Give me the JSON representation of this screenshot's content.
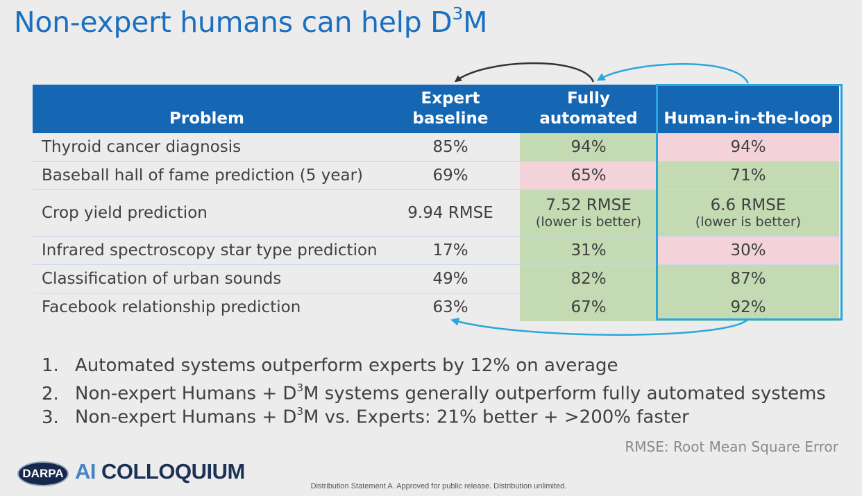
{
  "title": {
    "prefix": "Non-expert humans can help D",
    "sup": "3",
    "suffix": "M"
  },
  "table": {
    "columns": [
      "Problem",
      "Expert baseline",
      "Fully automated",
      "Human-in-the-loop"
    ],
    "rows": [
      {
        "problem": "Thyroid cancer diagnosis",
        "expert": "85%",
        "auto": "94%",
        "hitl": "94%",
        "auto_color": "green",
        "hitl_color": "pink"
      },
      {
        "problem": "Baseball hall of fame prediction (5 year)",
        "expert": "69%",
        "auto": "65%",
        "hitl": "71%",
        "auto_color": "pink",
        "hitl_color": "green"
      },
      {
        "problem": "Crop yield prediction",
        "expert": "9.94 RMSE",
        "auto": "7.52 RMSE",
        "auto_note": "(lower is better)",
        "hitl": "6.6 RMSE",
        "hitl_note": "(lower is better)",
        "auto_color": "green",
        "hitl_color": "green"
      },
      {
        "problem": "Infrared spectroscopy star type prediction",
        "expert": "17%",
        "auto": "31%",
        "hitl": "30%",
        "auto_color": "green",
        "hitl_color": "pink"
      },
      {
        "problem": "Classification of urban sounds",
        "expert": "49%",
        "auto": "82%",
        "hitl": "87%",
        "auto_color": "green",
        "hitl_color": "green"
      },
      {
        "problem": "Facebook relationship prediction",
        "expert": "63%",
        "auto": "67%",
        "hitl": "92%",
        "auto_color": "green",
        "hitl_color": "green"
      }
    ]
  },
  "notes": [
    {
      "num": "1.",
      "a": "Automated systems outperform experts by 12% on average",
      "sup": "",
      "b": ""
    },
    {
      "num": "2.",
      "a": "Non-expert Humans + D",
      "sup": "3",
      "b": "M systems generally outperform fully automated systems"
    },
    {
      "num": "3.",
      "a": "Non-expert Humans + D",
      "sup": "3",
      "b": "M vs. Experts:  21% better + >200% faster"
    }
  ],
  "footnote": "RMSE: Root Mean Square Error",
  "distribution": "Distribution Statement A. Approved for public release. Distribution unlimited.",
  "logo": {
    "darpa": "DARPA",
    "ai": "AI",
    "colloquium": "COLLOQUIUM"
  },
  "colors": {
    "title": "#1a6fc0",
    "header_bg": "#1667b3",
    "green": "#c3dab3",
    "pink": "#f3d3d9",
    "highlight": "#2aa6dc",
    "arrow_dark": "#333333",
    "arrow_blue": "#2aa6dc"
  }
}
